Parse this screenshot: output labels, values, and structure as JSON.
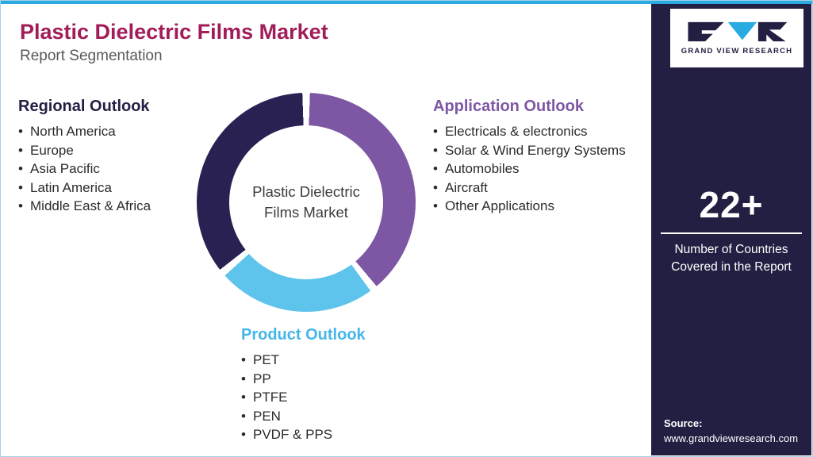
{
  "header": {
    "title": "Plastic Dielectric Films Market",
    "subtitle": "Report Segmentation"
  },
  "sections": {
    "regional": {
      "title": "Regional Outlook",
      "items": [
        "North America",
        "Europe",
        "Asia Pacific",
        "Latin America",
        "Middle East & Africa"
      ]
    },
    "application": {
      "title": "Application Outlook",
      "items": [
        "Electricals & electronics",
        "Solar & Wind Energy Systems",
        "Automobiles",
        "Aircraft",
        "Other Applications"
      ]
    },
    "product": {
      "title": "Product Outlook",
      "items": [
        "PET",
        "PP",
        "PTFE",
        "PEN",
        "PVDF & PPS"
      ]
    }
  },
  "chart_data": {
    "type": "pie",
    "variant": "donut",
    "center_label": [
      "Plastic Dielectric",
      "Films Market"
    ],
    "segments": [
      {
        "label": "Application Outlook",
        "color": "#7e57a4",
        "start_deg": 2,
        "end_deg": 140,
        "approx_share_pct": 38
      },
      {
        "label": "Product Outlook",
        "color": "#5fc4eb",
        "start_deg": 144,
        "end_deg": 228,
        "approx_share_pct": 24
      },
      {
        "label": "Regional Outlook",
        "color": "#2a2153",
        "start_deg": 232,
        "end_deg": 358,
        "approx_share_pct": 35
      }
    ],
    "values_labeled": false
  },
  "sidebar": {
    "logo_text": "GRAND VIEW RESEARCH",
    "stat_value": "22+",
    "stat_label": "Number of Countries Covered in the Report",
    "source_label": "Source:",
    "source_url": "www.grandviewresearch.com"
  },
  "colors": {
    "top_accent": "#29abe2",
    "title_text": "#a11c58",
    "sidebar_bg": "#221f42",
    "application_accent": "#7e57a4",
    "product_accent": "#45b6e8",
    "regional_accent": "#221f42",
    "segment_dark": "#2a2153",
    "segment_purple": "#7e57a4",
    "segment_blue": "#5fc4eb"
  }
}
